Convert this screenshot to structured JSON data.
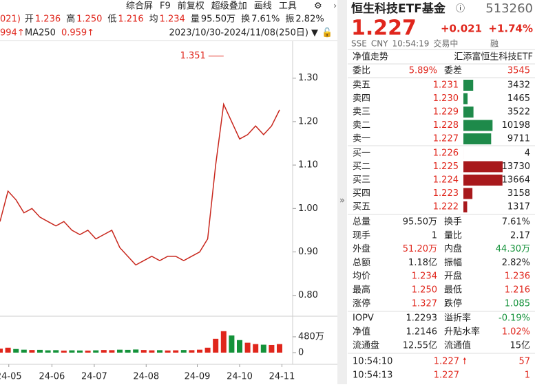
{
  "toolbar": {
    "items": [
      "综合屏",
      "F9",
      "前复权",
      "超级叠加",
      "画线",
      "工具"
    ]
  },
  "quote_bar": {
    "prefix": "021)",
    "items": [
      {
        "label": "开",
        "value": "1.236"
      },
      {
        "label": "高",
        "value": "1.250"
      },
      {
        "label": "低",
        "value": "1.216"
      },
      {
        "label": "均",
        "value": "1.234"
      },
      {
        "label": "量",
        "value": "95.50万"
      },
      {
        "label": "换",
        "value": "7.61%"
      },
      {
        "label": "振",
        "value": "2.82%"
      }
    ]
  },
  "ma_bar": {
    "prefix": "994↑",
    "label": "MA250",
    "value": "0.959↑",
    "range": "2023/10/30-2024/11/08(250日)"
  },
  "chart_data": {
    "type": "line",
    "color": "#c8261c",
    "values": [
      0.97,
      1.04,
      1.02,
      0.99,
      1.0,
      0.98,
      0.97,
      0.96,
      0.97,
      0.95,
      0.94,
      0.95,
      0.93,
      0.94,
      0.95,
      0.91,
      0.89,
      0.87,
      0.88,
      0.89,
      0.88,
      0.89,
      0.89,
      0.88,
      0.89,
      0.9,
      0.93,
      1.1,
      1.24,
      1.2,
      1.16,
      1.17,
      1.19,
      1.17,
      1.19,
      1.227
    ],
    "xlim": [
      0,
      35
    ],
    "ylim": [
      0.76,
      1.385
    ],
    "yticks": [
      {
        "value": 1.3,
        "label": "1.30"
      },
      {
        "value": 1.2,
        "label": "1.20"
      },
      {
        "value": 1.1,
        "label": "1.10"
      },
      {
        "value": 1.0,
        "label": "1.00"
      },
      {
        "value": 0.9,
        "label": "0.90"
      },
      {
        "value": 0.8,
        "label": "0.80"
      }
    ],
    "xticks": [
      {
        "value": 1.1,
        "label": "24-05"
      },
      {
        "value": 6.5,
        "label": "24-06"
      },
      {
        "value": 11.8,
        "label": "24-07"
      },
      {
        "value": 18.3,
        "label": "24-08"
      },
      {
        "value": 24.7,
        "label": "24-09"
      },
      {
        "value": 30,
        "label": "24-10"
      },
      {
        "value": 35.3,
        "label": "24-11"
      }
    ],
    "annotation": {
      "text": "1.351",
      "value": 1.351,
      "x": 28
    },
    "volume": {
      "values": [
        120,
        150,
        110,
        90,
        80,
        85,
        70,
        75,
        60,
        70,
        65,
        60,
        70,
        80,
        75,
        90,
        85,
        95,
        80,
        70,
        75,
        65,
        70,
        80,
        75,
        90,
        150,
        420,
        650,
        520,
        380,
        300,
        260,
        240,
        230,
        260
      ],
      "ylim": [
        0,
        1000
      ],
      "yticks": [
        {
          "value": 480,
          "label": "480万"
        },
        0
      ]
    }
  },
  "panel": {
    "title": "恒生科技ETF基金",
    "code": "513260",
    "price": "1.227",
    "change": "+0.021",
    "change_pct": "+1.74%",
    "status": [
      "SSE",
      "CNY",
      "10:54:19",
      "交易中"
    ],
    "margin": "融",
    "nav_label": "净值走势",
    "fund_name": "汇添富恒生科技ETF",
    "ratio": {
      "label": "委比",
      "value": "5.89%"
    },
    "diff": {
      "label": "委差",
      "value": "3545"
    },
    "asks": [
      {
        "label": "卖五",
        "price": "1.231",
        "volume": 3432
      },
      {
        "label": "卖四",
        "price": "1.230",
        "volume": 1465
      },
      {
        "label": "卖三",
        "price": "1.229",
        "volume": 3522
      },
      {
        "label": "卖二",
        "price": "1.228",
        "volume": 10198
      },
      {
        "label": "卖一",
        "price": "1.227",
        "volume": 9711
      }
    ],
    "bids": [
      {
        "label": "买一",
        "price": "1.226",
        "volume": 4
      },
      {
        "label": "买二",
        "price": "1.225",
        "volume": 13730
      },
      {
        "label": "买三",
        "price": "1.224",
        "volume": 13664
      },
      {
        "label": "买四",
        "price": "1.223",
        "volume": 3158
      },
      {
        "label": "买五",
        "price": "1.222",
        "volume": 1317
      }
    ],
    "stats": [
      [
        "总量",
        "95.50万",
        "换手",
        "7.61%"
      ],
      [
        "现手",
        "1",
        "量比",
        "2.17"
      ],
      [
        "外盘",
        "51.20万",
        "内盘",
        "44.30万"
      ],
      [
        "总额",
        "1.18亿",
        "振幅",
        "2.82%"
      ],
      [
        "均价",
        "1.234",
        "开盘",
        "1.236"
      ],
      [
        "最高",
        "1.250",
        "最低",
        "1.216"
      ],
      [
        "涨停",
        "1.327",
        "跌停",
        "1.085"
      ],
      [
        "IOPV",
        "1.2293",
        "溢折率",
        "-0.19%"
      ],
      [
        "净值",
        "1.2146",
        "升贴水率",
        "1.02%"
      ],
      [
        "流通盘",
        "12.55亿",
        "流通值",
        "15亿"
      ]
    ],
    "ticks": [
      {
        "time": "10:54:10",
        "price": "1.227",
        "volume": "57"
      },
      {
        "time": "10:54:13",
        "price": "1.227",
        "volume": "1"
      }
    ]
  }
}
